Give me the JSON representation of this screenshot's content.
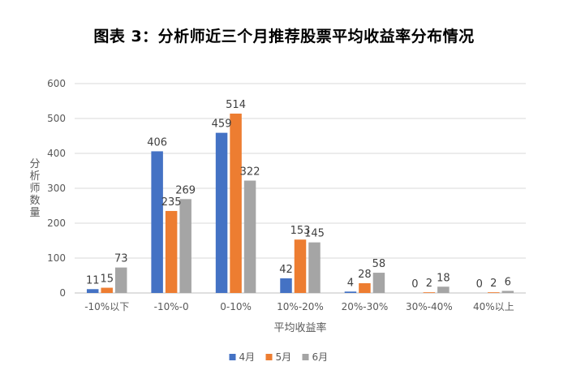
{
  "chart_data": {
    "type": "bar",
    "title": "图表 3：分析师近三个月推荐股票平均收益率分布情况",
    "xlabel": "平均收益率",
    "ylabel": "分析师数量",
    "ylim": [
      0,
      600
    ],
    "yticks": [
      0,
      100,
      200,
      300,
      400,
      500,
      600
    ],
    "grid": true,
    "legend_position": "bottom",
    "categories": [
      "-10%以下",
      "-10%-0",
      "0-10%",
      "10%-20%",
      "20%-30%",
      "30%-40%",
      "40%以上"
    ],
    "series": [
      {
        "name": "4月",
        "color": "#4472C4",
        "values": [
          11,
          406,
          459,
          42,
          4,
          0,
          0
        ]
      },
      {
        "name": "5月",
        "color": "#ED7D31",
        "values": [
          15,
          235,
          514,
          153,
          28,
          2,
          2
        ]
      },
      {
        "name": "6月",
        "color": "#A5A5A5",
        "values": [
          73,
          269,
          322,
          145,
          58,
          18,
          6
        ]
      }
    ]
  }
}
